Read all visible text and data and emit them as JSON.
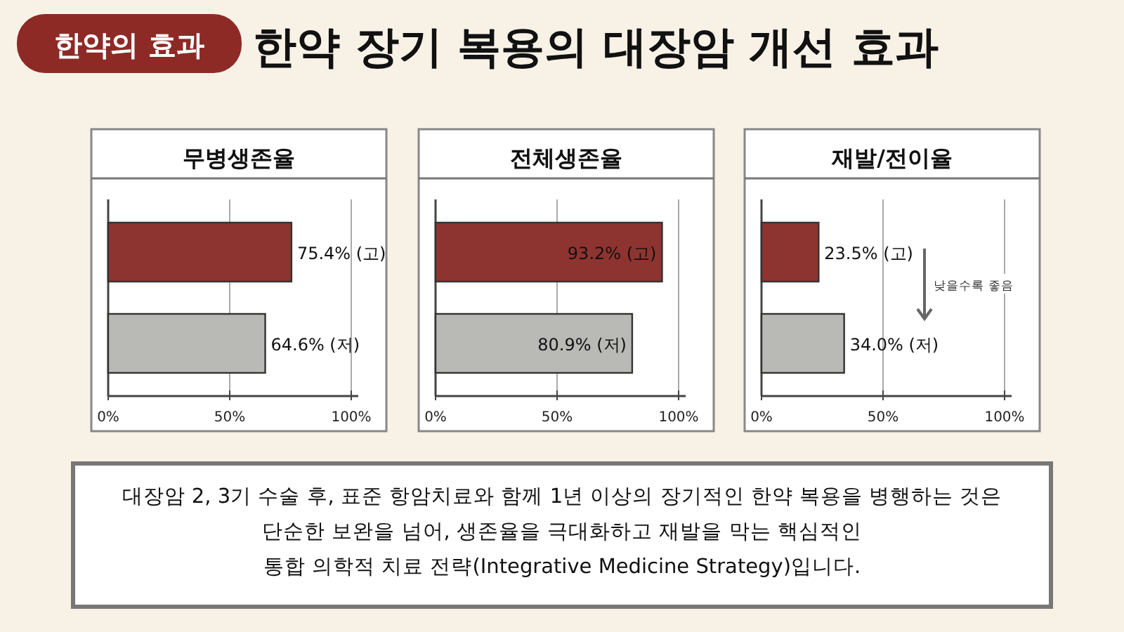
{
  "chart_data": [
    {
      "type": "other",
      "title": "한약 장기 복용의 대장암 개선 효과",
      "subtitle": "한약의 효과"
    },
    {
      "type": "bar",
      "orientation": "horizontal",
      "title": "무병생존율",
      "categories": [
        null,
        null
      ],
      "values": [
        75.4,
        64.6
      ],
      "colors": [
        "#8e3430",
        "#b9b9b6"
      ],
      "value_labels": [
        "75.4% (고)",
        "64.6% (저)"
      ],
      "xlim": [
        0,
        100
      ],
      "xticks": [
        {
          "value": 0,
          "label": "0%"
        },
        {
          "value": 50,
          "label": "50%"
        },
        {
          "value": 100,
          "label": "100%"
        }
      ],
      "grid": "x"
    },
    {
      "type": "bar",
      "orientation": "horizontal",
      "title": "전체생존율",
      "categories": [
        null,
        null
      ],
      "values": [
        93.2,
        80.9
      ],
      "colors": [
        "#8e3430",
        "#b9b9b6"
      ],
      "value_labels": [
        "93.2% (고)",
        "80.9% (저)"
      ],
      "xlim": [
        0,
        100
      ],
      "xticks": [
        {
          "value": 0,
          "label": "0%"
        },
        {
          "value": 50,
          "label": "50%"
        },
        {
          "value": 100,
          "label": "100%"
        }
      ],
      "grid": "x"
    },
    {
      "type": "bar",
      "orientation": "horizontal",
      "title": "재발/전이율",
      "categories": [
        null,
        null
      ],
      "values": [
        23.5,
        34.0
      ],
      "colors": [
        "#8e3430",
        "#b9b9b6"
      ],
      "value_labels": [
        "23.5% (고)",
        "34.0% (저)"
      ],
      "xlim": [
        0,
        100
      ],
      "xticks": [
        {
          "value": 0,
          "label": "0%"
        },
        {
          "value": 50,
          "label": "50%"
        },
        {
          "value": 100,
          "label": "100%"
        }
      ],
      "grid": "x",
      "annotations": [
        "낮을수록 좋음"
      ]
    },
    {
      "type": "other",
      "annotations": [
        "대장암 2, 3기 수술 후, 표준 항암치료와 함께 1년 이상의 장기적인 한약 복용을 병행하는 것은",
        "단순한 보완을 넘어, 생존율을 극대화하고 재발을 막는 핵심적인",
        "통합 의학적 치료 전략(Integrative Medicine Strategy)입니다."
      ]
    }
  ]
}
